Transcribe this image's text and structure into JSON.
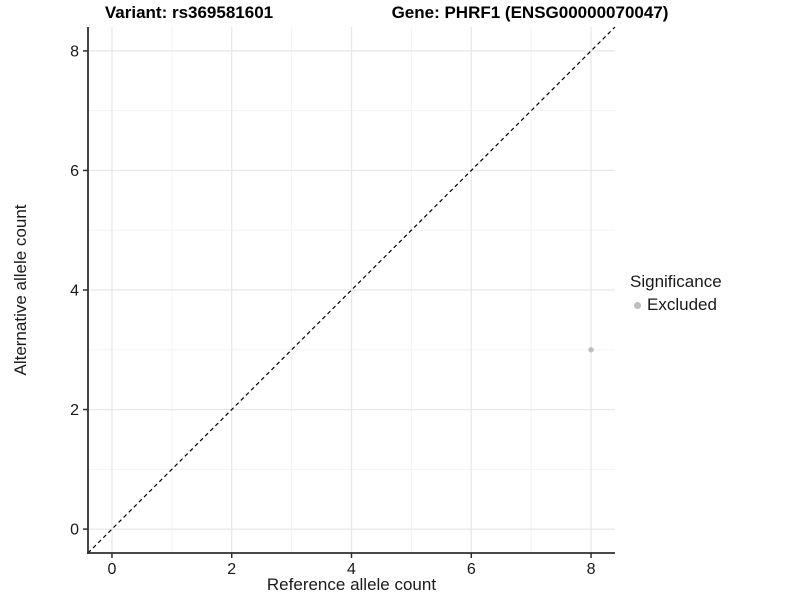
{
  "chart_data": {
    "type": "scatter",
    "title_left": "Variant: rs369581601",
    "title_right": "Gene: PHRF1 (ENSG00000070047)",
    "xlabel": "Reference allele count",
    "ylabel": "Alternative allele count",
    "xlim": [
      -0.4,
      8.4
    ],
    "ylim": [
      -0.4,
      8.4
    ],
    "xticks": [
      0,
      2,
      4,
      6,
      8
    ],
    "yticks": [
      0,
      2,
      4,
      6,
      8
    ],
    "minor_xticks": [
      1,
      3,
      5,
      7
    ],
    "minor_yticks": [
      1,
      3,
      5,
      7
    ],
    "grid": true,
    "legend_position": "right",
    "reference_line": {
      "type": "identity",
      "style": "dashed",
      "color": "#000000"
    },
    "series": [
      {
        "name": "Excluded",
        "color": "#bebebe",
        "points": [
          {
            "x": 8,
            "y": 3
          }
        ]
      }
    ],
    "legend": {
      "title": "Significance",
      "items": [
        {
          "label": "Excluded",
          "color": "#bebebe"
        }
      ]
    },
    "colors": {
      "background": "#ffffff",
      "grid_major": "#e7e7e7",
      "grid_minor": "#f3f3f3",
      "axis": "#2f2f2f",
      "tick_text": "#1a1a1a",
      "title_text": "#000000"
    }
  }
}
